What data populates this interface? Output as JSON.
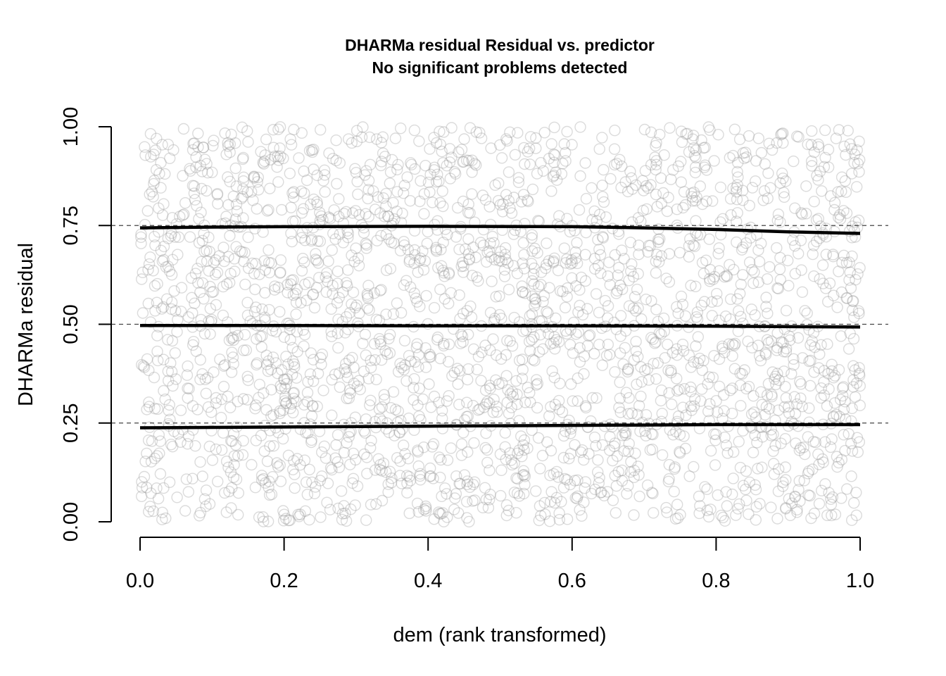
{
  "chart_data": {
    "type": "scatter",
    "title": "DHARMa residual Residual vs. predictor",
    "subtitle": "No significant problems detected",
    "xlabel": "dem (rank transformed)",
    "ylabel": "DHARMa residual",
    "xlim": [
      0,
      1
    ],
    "ylim": [
      0,
      1
    ],
    "x_ticks": [
      "0.0",
      "0.2",
      "0.4",
      "0.6",
      "0.8",
      "1.0"
    ],
    "y_ticks": [
      "0.00",
      "0.25",
      "0.50",
      "0.75",
      "1.00"
    ],
    "reference_lines": [
      0.25,
      0.5,
      0.75
    ],
    "point_style": {
      "color": "#999999",
      "opacity": 0.35,
      "shape": "open-circle"
    },
    "point_count_approx": 2500,
    "quantile_curves": [
      {
        "quantile": 0.25,
        "x": [
          0.0,
          0.2,
          0.4,
          0.6,
          0.8,
          1.0
        ],
        "y": [
          0.238,
          0.24,
          0.242,
          0.244,
          0.246,
          0.246
        ]
      },
      {
        "quantile": 0.5,
        "x": [
          0.0,
          0.2,
          0.4,
          0.6,
          0.8,
          1.0
        ],
        "y": [
          0.497,
          0.497,
          0.496,
          0.496,
          0.495,
          0.493
        ]
      },
      {
        "quantile": 0.75,
        "x": [
          0.0,
          0.1,
          0.2,
          0.4,
          0.6,
          0.7,
          0.8,
          0.9,
          1.0
        ],
        "y": [
          0.744,
          0.746,
          0.747,
          0.748,
          0.747,
          0.744,
          0.74,
          0.734,
          0.73
        ]
      }
    ],
    "curve_color": "#000000",
    "reference_line_color": "#444444",
    "grid": false,
    "legend": "none"
  }
}
